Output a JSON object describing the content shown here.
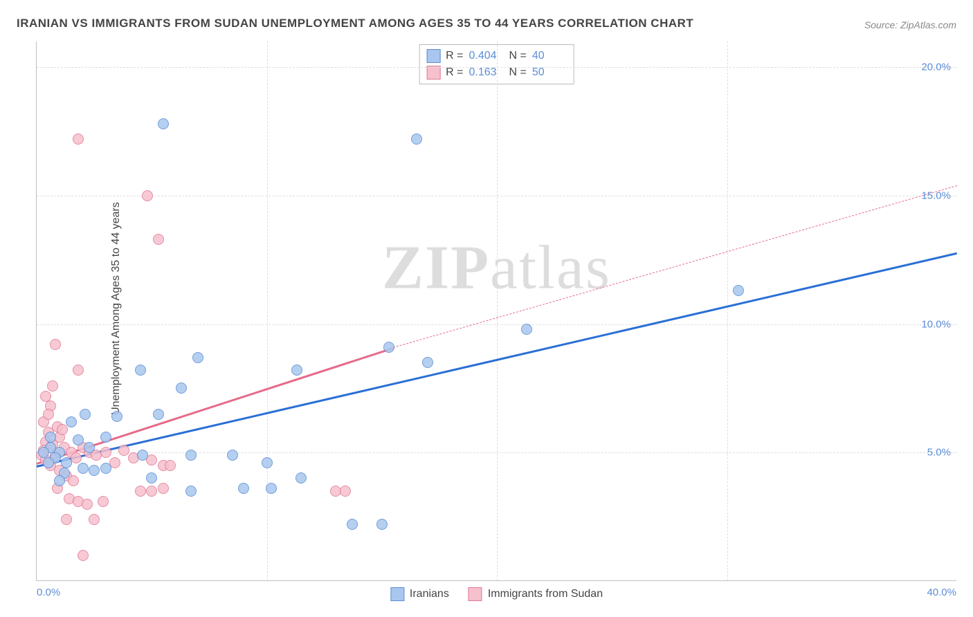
{
  "title": "IRANIAN VS IMMIGRANTS FROM SUDAN UNEMPLOYMENT AMONG AGES 35 TO 44 YEARS CORRELATION CHART",
  "source": "Source: ZipAtlas.com",
  "y_axis_label": "Unemployment Among Ages 35 to 44 years",
  "watermark": {
    "prefix": "ZIP",
    "suffix": "atlas"
  },
  "colors": {
    "series1_fill": "#a9c7ee",
    "series1_stroke": "#5b8dd6",
    "series2_fill": "#f6c0cd",
    "series2_stroke": "#e07a95",
    "trend1": "#2a6fd6",
    "trend2": "#e66b8a",
    "grid": "#dddddd",
    "axis": "#c0c0c0",
    "tick_text": "#5b8dd6",
    "title_text": "#444444"
  },
  "chart": {
    "type": "scatter",
    "xlim": [
      0,
      40
    ],
    "ylim": [
      0,
      21
    ],
    "x_ticks": [
      0,
      10,
      20,
      30,
      40
    ],
    "x_tick_labels": [
      "0.0%",
      "",
      "",
      "",
      "40.0%"
    ],
    "y_ticks": [
      5,
      10,
      15,
      20
    ],
    "y_tick_labels": [
      "5.0%",
      "10.0%",
      "15.0%",
      "20.0%"
    ],
    "marker_radius": 8,
    "legend_top": {
      "rows": [
        {
          "swatch": "series1",
          "r_label": "R =",
          "r_value": "0.404",
          "n_label": "N =",
          "n_value": "40"
        },
        {
          "swatch": "series2",
          "r_label": "R =",
          "r_value": "0.163",
          "n_label": "N =",
          "n_value": "50"
        }
      ]
    },
    "legend_bottom": [
      {
        "swatch": "series1",
        "label": "Iranians"
      },
      {
        "swatch": "series2",
        "label": "Immigrants from Sudan"
      }
    ],
    "trend_lines": [
      {
        "series": 1,
        "x1": 0,
        "y1": 4.5,
        "x2": 40,
        "y2": 12.8,
        "style": "solid",
        "width": 3
      },
      {
        "series": 2,
        "x1": 0,
        "y1": 4.6,
        "x2": 15.5,
        "y2": 9.1,
        "style": "solid",
        "width": 3
      },
      {
        "series": 2,
        "x1": 15.5,
        "y1": 9.1,
        "x2": 40,
        "y2": 15.4,
        "style": "dashed",
        "width": 1.5
      }
    ],
    "series": [
      {
        "name": "Iranians",
        "color_fill": "#a9c7ee",
        "color_stroke": "#5b8dd6",
        "points": [
          [
            5.5,
            17.8
          ],
          [
            16.5,
            17.2
          ],
          [
            30.5,
            11.3
          ],
          [
            21.3,
            9.8
          ],
          [
            15.3,
            9.1
          ],
          [
            17.0,
            8.5
          ],
          [
            7.0,
            8.7
          ],
          [
            4.5,
            8.2
          ],
          [
            11.3,
            8.2
          ],
          [
            6.3,
            7.5
          ],
          [
            5.3,
            6.5
          ],
          [
            3.5,
            6.4
          ],
          [
            3.0,
            5.6
          ],
          [
            1.8,
            5.5
          ],
          [
            2.3,
            5.2
          ],
          [
            1.0,
            5.0
          ],
          [
            0.8,
            4.8
          ],
          [
            4.6,
            4.9
          ],
          [
            6.7,
            4.9
          ],
          [
            8.5,
            4.9
          ],
          [
            10.0,
            4.6
          ],
          [
            11.5,
            4.0
          ],
          [
            9.0,
            3.6
          ],
          [
            10.2,
            3.6
          ],
          [
            6.7,
            3.5
          ],
          [
            5.0,
            4.0
          ],
          [
            3.0,
            4.4
          ],
          [
            2.5,
            4.3
          ],
          [
            2.0,
            4.4
          ],
          [
            1.2,
            4.2
          ],
          [
            1.0,
            3.9
          ],
          [
            0.5,
            4.6
          ],
          [
            0.6,
            5.2
          ],
          [
            0.3,
            5.0
          ],
          [
            13.7,
            2.2
          ],
          [
            15.0,
            2.2
          ],
          [
            1.5,
            6.2
          ],
          [
            2.1,
            6.5
          ],
          [
            1.3,
            4.6
          ],
          [
            0.6,
            5.6
          ]
        ]
      },
      {
        "name": "Immigrants from Sudan",
        "color_fill": "#f6c0cd",
        "color_stroke": "#e07a95",
        "points": [
          [
            1.8,
            17.2
          ],
          [
            4.8,
            15.0
          ],
          [
            5.3,
            13.3
          ],
          [
            0.8,
            9.2
          ],
          [
            0.4,
            7.2
          ],
          [
            0.6,
            6.8
          ],
          [
            0.3,
            6.2
          ],
          [
            0.5,
            5.8
          ],
          [
            0.4,
            5.4
          ],
          [
            0.3,
            5.1
          ],
          [
            0.2,
            4.9
          ],
          [
            0.4,
            4.7
          ],
          [
            0.6,
            4.5
          ],
          [
            1.8,
            8.2
          ],
          [
            1.0,
            5.6
          ],
          [
            1.2,
            5.2
          ],
          [
            1.5,
            5.0
          ],
          [
            1.7,
            4.8
          ],
          [
            2.0,
            5.2
          ],
          [
            2.3,
            5.0
          ],
          [
            2.6,
            4.9
          ],
          [
            3.0,
            5.0
          ],
          [
            3.4,
            4.6
          ],
          [
            3.8,
            5.1
          ],
          [
            1.0,
            4.3
          ],
          [
            1.3,
            4.1
          ],
          [
            1.6,
            3.9
          ],
          [
            0.9,
            3.6
          ],
          [
            1.4,
            3.2
          ],
          [
            1.8,
            3.1
          ],
          [
            2.2,
            3.0
          ],
          [
            2.9,
            3.1
          ],
          [
            2.5,
            2.4
          ],
          [
            1.3,
            2.4
          ],
          [
            2.0,
            1.0
          ],
          [
            5.5,
            4.5
          ],
          [
            5.8,
            4.5
          ],
          [
            5.0,
            4.7
          ],
          [
            4.2,
            4.8
          ],
          [
            4.5,
            3.5
          ],
          [
            5.0,
            3.5
          ],
          [
            5.5,
            3.6
          ],
          [
            13.0,
            3.5
          ],
          [
            13.4,
            3.5
          ],
          [
            0.7,
            7.6
          ],
          [
            0.5,
            6.5
          ],
          [
            0.9,
            6.0
          ],
          [
            1.1,
            5.9
          ],
          [
            0.7,
            5.3
          ],
          [
            0.8,
            4.9
          ]
        ]
      }
    ]
  }
}
